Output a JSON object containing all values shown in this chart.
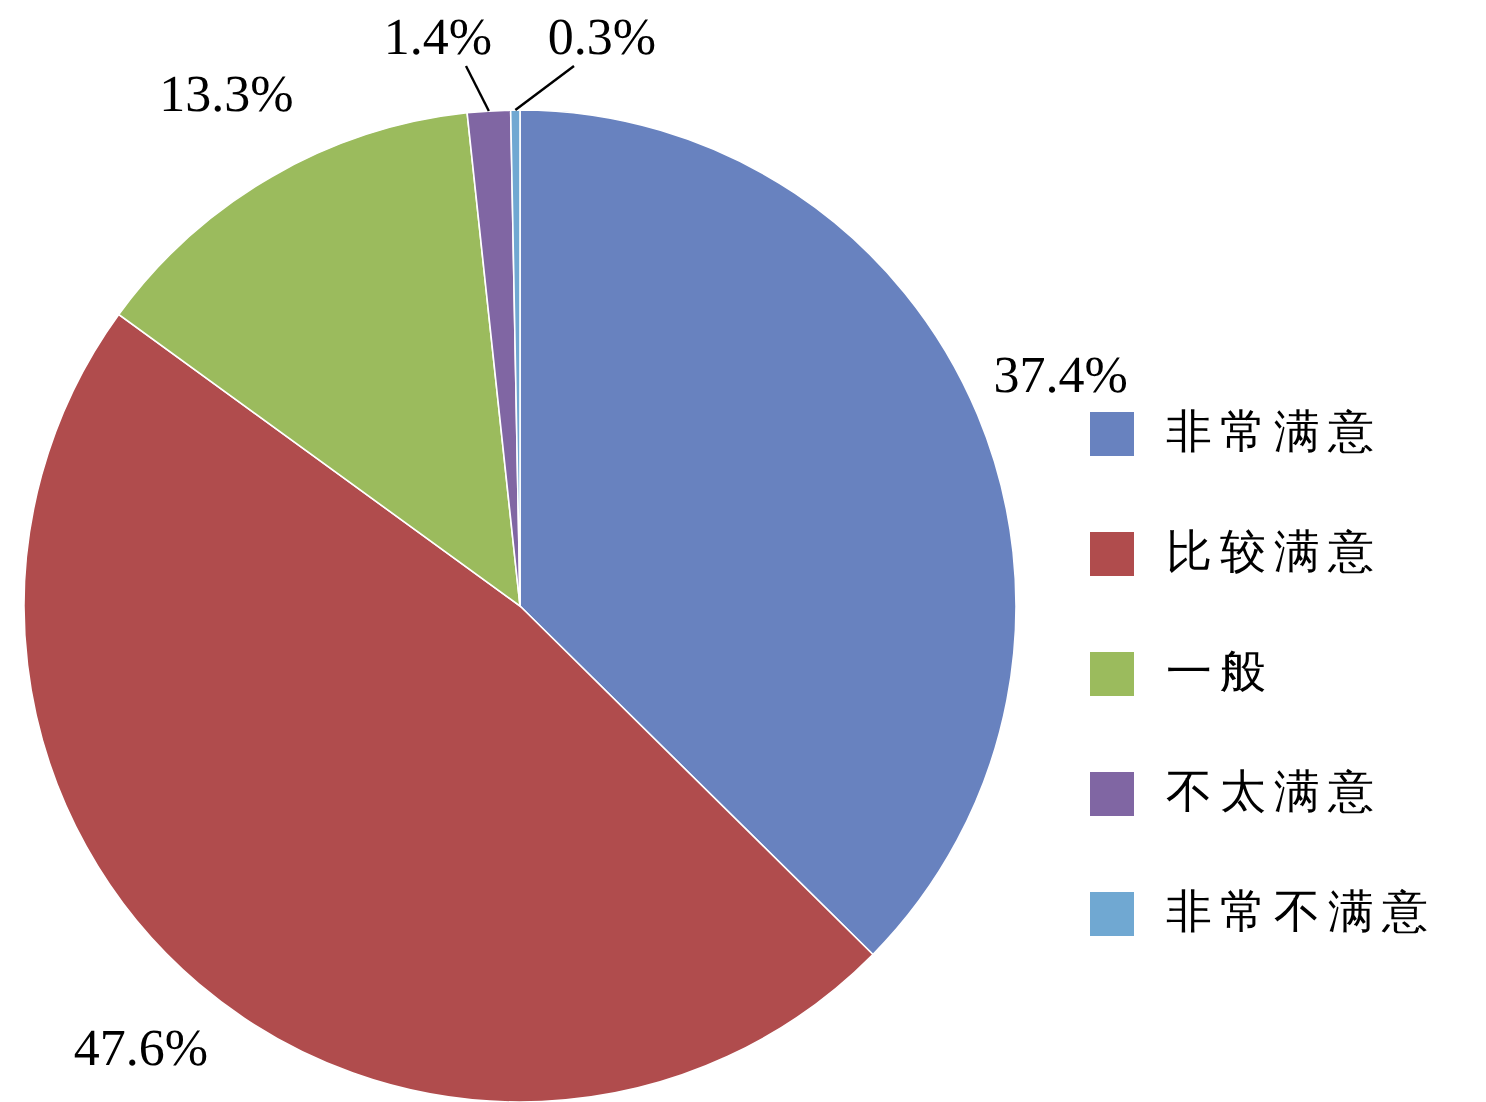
{
  "chart_data": {
    "type": "pie",
    "categories": [
      "非常满意",
      "比较满意",
      "一般",
      "不太满意",
      "非常不满意"
    ],
    "values": [
      37.4,
      47.6,
      13.3,
      1.4,
      0.3
    ],
    "value_labels": [
      "37.4%",
      "47.6%",
      "13.3%",
      "1.4%",
      "0.3%"
    ],
    "colors": [
      "#6882bf",
      "#b04c4d",
      "#9bbb5d",
      "#8066a3",
      "#70a8d2"
    ],
    "legend": "right"
  }
}
